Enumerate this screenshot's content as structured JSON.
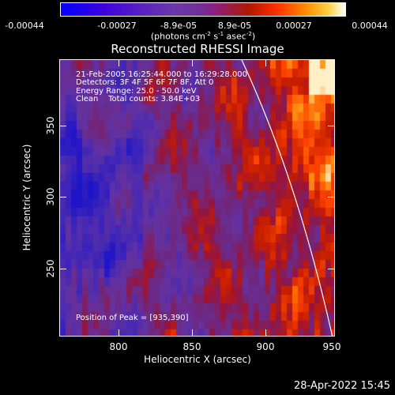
{
  "colorbar": {
    "ticks": [
      "-0.00044",
      "-0.00027",
      "-8.9e-05",
      "8.9e-05",
      "0.00027",
      "0.00044"
    ],
    "unit_prefix": "(photons cm",
    "unit_exp1": "-2",
    "unit_mid1": " s",
    "unit_exp2": "-1",
    "unit_mid2": " asec",
    "unit_exp3": "-2",
    "unit_suffix": ")"
  },
  "title": "Reconstructed RHESSI Image",
  "info": {
    "line1": "21-Feb-2005 16:25:44.000 to 16:29:28.000",
    "line2": "Detectors: 3F 4F 5F 6F 7F 8F, Att 0",
    "line3": "Energy Range: 25.0 - 50.0 keV",
    "line4": "Clean    Total counts: 3.84E+03",
    "peak": "Position of Peak = [935,390]"
  },
  "axes": {
    "xlabel": "Heliocentric X (arcsec)",
    "ylabel": "Heliocentric Y (arcsec)",
    "xticks": [
      "800",
      "850",
      "900",
      "950"
    ],
    "yticks": [
      "250",
      "300",
      "350"
    ],
    "xlim": [
      757,
      951
    ],
    "ylim": [
      200,
      396
    ]
  },
  "timestamp": "28-Apr-2022 15:45",
  "colors": {
    "background": "#000000",
    "foreground": "#ffffff"
  }
}
